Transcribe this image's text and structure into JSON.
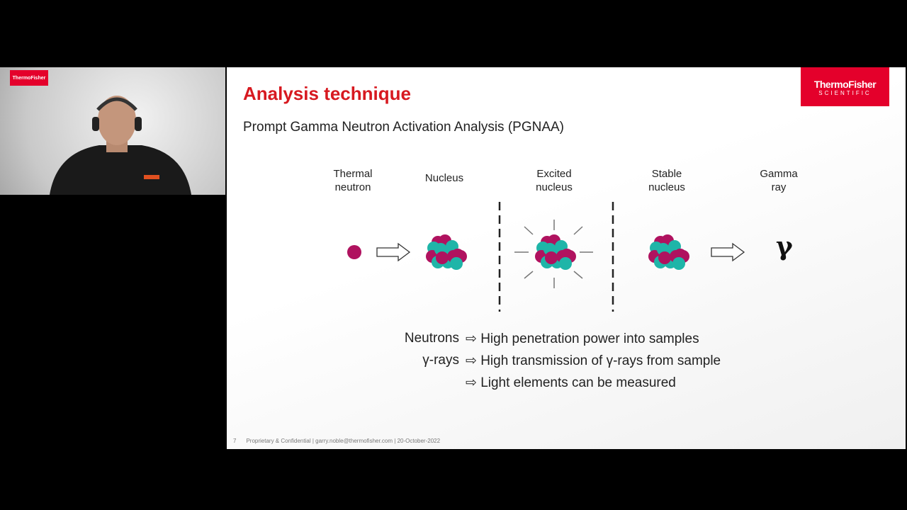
{
  "webcam": {
    "logo_text": "ThermoFisher"
  },
  "slide": {
    "title": "Analysis technique",
    "subtitle": "Prompt Gamma Neutron Activation Analysis (PGNAA)",
    "logo": {
      "line1": "ThermoFisher",
      "line2": "SCIENTIFIC"
    },
    "diagram": {
      "labels": [
        "Thermal\nneutron",
        "Nucleus",
        "Excited\nnucleus",
        "Stable\nnucleus",
        "Gamma\nray"
      ],
      "gamma_symbol": "γ",
      "colors": {
        "proton": "#b0125f",
        "neutron": "#1fb5a8"
      }
    },
    "bullets": [
      {
        "term": "Neutrons",
        "text": "⇨ High penetration power into samples"
      },
      {
        "term": "γ-rays",
        "text": "⇨ High transmission of γ-rays from sample"
      },
      {
        "term": "",
        "text": "⇨ Light elements can be measured"
      }
    ],
    "footer": {
      "page": "7",
      "text": "Proprietary & Confidential |  garry.noble@thermofisher.com | 20-October-2022"
    }
  }
}
